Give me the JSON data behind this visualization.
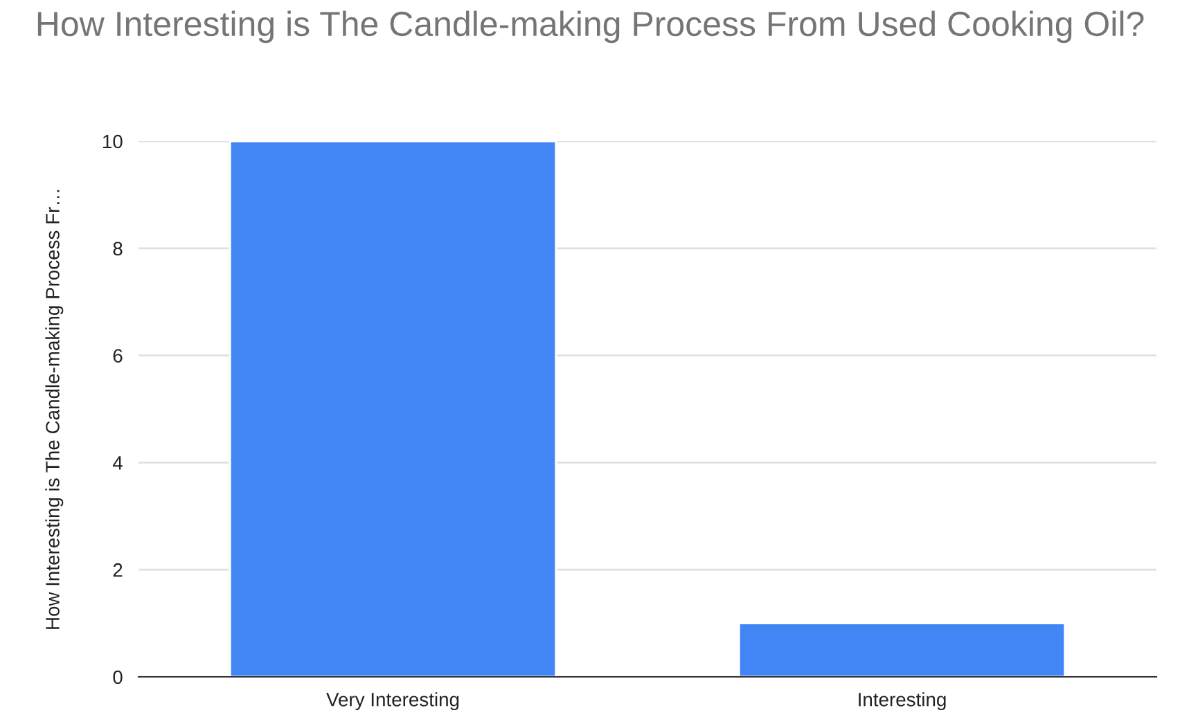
{
  "chart_data": {
    "type": "bar",
    "title": "How Interesting is The Candle-making Process From Used Cooking Oil?",
    "ylabel": "How Interesting is The Candle-making Process Fr…",
    "categories": [
      "Very Interesting",
      "Interesting"
    ],
    "values": [
      10,
      1
    ],
    "color": "#4285f4",
    "ylim": [
      0,
      10
    ],
    "yticks": [
      0,
      2,
      4,
      6,
      8,
      10
    ],
    "grid": "y",
    "legend": false
  }
}
